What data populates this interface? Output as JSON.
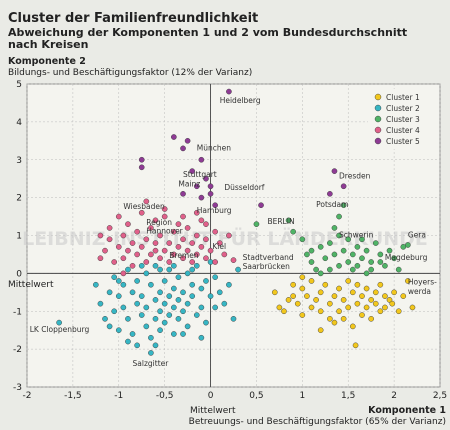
{
  "header": {
    "title": "Cluster der Familienfreundlichkeit",
    "subtitle_1": "Abweichung der Komponenten 1 und 2 vom Bundesdurchschnitt",
    "subtitle_2": "nach Kreisen"
  },
  "watermark": "LEIBNIZ-INSTITUT FÜR LÄNDERKUNDE",
  "chart_data": {
    "type": "scatter",
    "y_axis_title": "Komponente 2",
    "y_axis_desc": "Bildungs- und Beschäftigungsfaktor (12% der Varianz)",
    "x_axis_title": "Komponente 1",
    "x_axis_desc": "Betreuungs- und Beschäftigungsfaktor (65% der Varianz)",
    "x_mean_label": "Mittelwert",
    "y_mean_label": "Mittelwert",
    "xlim": [
      -2,
      2.5
    ],
    "ylim": [
      -3,
      5
    ],
    "x_ticks": [
      "-2",
      "-1,5",
      "-1",
      "-0,5",
      "0",
      "0,5",
      "1",
      "1,5",
      "2",
      "2,5"
    ],
    "y_ticks": [
      "-3",
      "-2",
      "-1",
      "0",
      "1",
      "2",
      "3",
      "4",
      "5"
    ],
    "legend_position": "top-right",
    "series": [
      {
        "name": "Cluster 1",
        "color": "#f2c71c",
        "points": [
          [
            0.7,
            -0.5
          ],
          [
            0.75,
            -0.9
          ],
          [
            0.8,
            -1.0
          ],
          [
            0.85,
            -0.7
          ],
          [
            0.9,
            -0.3
          ],
          [
            0.95,
            -0.8
          ],
          [
            1.0,
            -0.4
          ],
          [
            1.0,
            -1.1
          ],
          [
            1.05,
            -0.6
          ],
          [
            1.1,
            -0.9
          ],
          [
            1.1,
            -0.2
          ],
          [
            1.15,
            -0.7
          ],
          [
            1.2,
            -1.0
          ],
          [
            1.2,
            -0.5
          ],
          [
            1.25,
            -0.3
          ],
          [
            1.3,
            -0.8
          ],
          [
            1.3,
            -1.2
          ],
          [
            1.35,
            -0.6
          ],
          [
            1.4,
            -0.4
          ],
          [
            1.4,
            -1.0
          ],
          [
            1.45,
            -0.7
          ],
          [
            1.5,
            -0.2
          ],
          [
            1.5,
            -0.9
          ],
          [
            1.55,
            -0.5
          ],
          [
            1.55,
            -1.4
          ],
          [
            1.6,
            -0.8
          ],
          [
            1.6,
            -0.3
          ],
          [
            1.65,
            -1.1
          ],
          [
            1.65,
            -0.6
          ],
          [
            1.7,
            -0.9
          ],
          [
            1.7,
            -0.4
          ],
          [
            1.75,
            -0.7
          ],
          [
            1.75,
            -1.2
          ],
          [
            1.8,
            -0.5
          ],
          [
            1.8,
            -0.8
          ],
          [
            1.85,
            -1.0
          ],
          [
            1.85,
            -0.3
          ],
          [
            1.9,
            -0.6
          ],
          [
            1.9,
            -0.9
          ],
          [
            1.95,
            -0.7
          ],
          [
            1.98,
            -0.8
          ],
          [
            2.0,
            -0.5
          ],
          [
            2.05,
            -1.0
          ],
          [
            2.1,
            -0.6
          ],
          [
            2.15,
            -0.2
          ],
          [
            2.2,
            -0.9
          ],
          [
            1.58,
            -1.9
          ],
          [
            1.35,
            -1.3
          ],
          [
            1.2,
            -1.5
          ],
          [
            1.0,
            -0.1
          ],
          [
            0.9,
            -0.6
          ],
          [
            1.45,
            -1.2
          ]
        ]
      },
      {
        "name": "Cluster 2",
        "color": "#36b6c4",
        "points": [
          [
            -1.65,
            -1.3
          ],
          [
            -1.25,
            -0.3
          ],
          [
            -1.2,
            -0.8
          ],
          [
            -1.15,
            -1.2
          ],
          [
            -1.1,
            -0.5
          ],
          [
            -1.05,
            -0.1
          ],
          [
            -1.05,
            -1.0
          ],
          [
            -1.0,
            -0.6
          ],
          [
            -1.0,
            -1.5
          ],
          [
            -0.95,
            -0.3
          ],
          [
            -0.95,
            -0.9
          ],
          [
            -0.9,
            -1.2
          ],
          [
            -0.9,
            0.1
          ],
          [
            -0.85,
            -0.5
          ],
          [
            -0.85,
            -1.6
          ],
          [
            -0.8,
            -0.8
          ],
          [
            -0.8,
            -0.2
          ],
          [
            -0.75,
            -1.1
          ],
          [
            -0.75,
            -0.6
          ],
          [
            -0.7,
            0.0
          ],
          [
            -0.7,
            -1.4
          ],
          [
            -0.7,
            -0.9
          ],
          [
            -0.65,
            -0.3
          ],
          [
            -0.65,
            -1.7
          ],
          [
            -0.6,
            -0.7
          ],
          [
            -0.6,
            -1.2
          ],
          [
            -0.6,
            0.2
          ],
          [
            -0.55,
            -0.5
          ],
          [
            -0.55,
            -1.0
          ],
          [
            -0.55,
            -1.5
          ],
          [
            -0.5,
            -0.2
          ],
          [
            -0.5,
            -0.8
          ],
          [
            -0.5,
            -1.3
          ],
          [
            -0.45,
            0.1
          ],
          [
            -0.45,
            -0.6
          ],
          [
            -0.45,
            -1.1
          ],
          [
            -0.4,
            -0.4
          ],
          [
            -0.4,
            -0.9
          ],
          [
            -0.4,
            -1.6
          ],
          [
            -0.35,
            -0.1
          ],
          [
            -0.35,
            -0.7
          ],
          [
            -0.35,
            -1.2
          ],
          [
            -0.3,
            -0.5
          ],
          [
            -0.3,
            -1.0
          ],
          [
            -0.25,
            0.0
          ],
          [
            -0.25,
            -0.8
          ],
          [
            -0.25,
            -1.4
          ],
          [
            -0.2,
            -0.3
          ],
          [
            -0.2,
            -0.6
          ],
          [
            -0.15,
            -1.1
          ],
          [
            -0.15,
            0.2
          ],
          [
            -0.1,
            -0.4
          ],
          [
            -0.1,
            -0.9
          ],
          [
            -0.05,
            -0.2
          ],
          [
            -0.05,
            -1.3
          ],
          [
            0.0,
            -0.6
          ],
          [
            0.0,
            0.3
          ],
          [
            0.05,
            -0.9
          ],
          [
            0.05,
            -0.1
          ],
          [
            0.1,
            -0.5
          ],
          [
            0.15,
            -0.8
          ],
          [
            0.2,
            -0.3
          ],
          [
            0.25,
            -1.2
          ],
          [
            0.3,
            0.1
          ],
          [
            -0.65,
            -2.1
          ],
          [
            -1.0,
            -0.2
          ],
          [
            -0.8,
            -1.9
          ],
          [
            -0.3,
            -1.6
          ],
          [
            -0.1,
            -1.7
          ],
          [
            -0.55,
            0.1
          ],
          [
            -0.4,
            0.2
          ],
          [
            -0.2,
            0.1
          ],
          [
            -0.9,
            -1.8
          ],
          [
            -0.6,
            -1.9
          ],
          [
            -1.1,
            -1.4
          ],
          [
            -0.75,
            0.2
          ]
        ]
      },
      {
        "name": "Cluster 3",
        "color": "#4fb366",
        "points": [
          [
            0.5,
            1.3
          ],
          [
            0.85,
            1.4
          ],
          [
            0.9,
            1.1
          ],
          [
            1.0,
            0.9
          ],
          [
            1.05,
            0.5
          ],
          [
            1.1,
            0.3
          ],
          [
            1.15,
            0.1
          ],
          [
            1.2,
            0.7
          ],
          [
            1.25,
            0.4
          ],
          [
            1.3,
            0.8
          ],
          [
            1.3,
            0.1
          ],
          [
            1.35,
            0.5
          ],
          [
            1.4,
            1.0
          ],
          [
            1.4,
            0.2
          ],
          [
            1.45,
            0.6
          ],
          [
            1.5,
            0.3
          ],
          [
            1.5,
            0.9
          ],
          [
            1.55,
            0.1
          ],
          [
            1.55,
            0.5
          ],
          [
            1.6,
            0.7
          ],
          [
            1.6,
            0.2
          ],
          [
            1.65,
            0.4
          ],
          [
            1.7,
            0.6
          ],
          [
            1.7,
            0.0
          ],
          [
            1.75,
            0.3
          ],
          [
            1.8,
            0.8
          ],
          [
            1.85,
            0.5
          ],
          [
            1.9,
            0.2
          ],
          [
            1.95,
            0.6
          ],
          [
            2.0,
            0.4
          ],
          [
            2.05,
            0.1
          ],
          [
            2.1,
            0.7
          ],
          [
            2.15,
            0.75
          ],
          [
            1.45,
            1.8
          ],
          [
            1.4,
            1.5
          ],
          [
            1.35,
            1.2
          ],
          [
            1.1,
            0.6
          ],
          [
            1.2,
            0.0
          ],
          [
            1.65,
            0.9
          ],
          [
            1.75,
            0.1
          ],
          [
            1.85,
            0.3
          ]
        ]
      },
      {
        "name": "Cluster 4",
        "color": "#e0608a",
        "points": [
          [
            -1.15,
            0.6
          ],
          [
            -1.1,
            0.9
          ],
          [
            -1.1,
            1.2
          ],
          [
            -1.05,
            0.3
          ],
          [
            -1.0,
            0.7
          ],
          [
            -1.0,
            1.5
          ],
          [
            -0.95,
            1.0
          ],
          [
            -0.95,
            0.4
          ],
          [
            -0.9,
            0.6
          ],
          [
            -0.9,
            1.3
          ],
          [
            -0.85,
            0.8
          ],
          [
            -0.85,
            0.2
          ],
          [
            -0.8,
            1.1
          ],
          [
            -0.8,
            0.5
          ],
          [
            -0.75,
            1.6
          ],
          [
            -0.75,
            0.7
          ],
          [
            -0.7,
            0.9
          ],
          [
            -0.7,
            0.3
          ],
          [
            -0.65,
            1.2
          ],
          [
            -0.65,
            0.5
          ],
          [
            -0.6,
            0.8
          ],
          [
            -0.6,
            1.4
          ],
          [
            -0.55,
            0.4
          ],
          [
            -0.55,
            1.0
          ],
          [
            -0.5,
            0.6
          ],
          [
            -0.5,
            1.7
          ],
          [
            -0.45,
            0.8
          ],
          [
            -0.45,
            0.3
          ],
          [
            -0.4,
            1.1
          ],
          [
            -0.4,
            0.5
          ],
          [
            -0.35,
            0.7
          ],
          [
            -0.35,
            1.3
          ],
          [
            -0.3,
            0.4
          ],
          [
            -0.3,
            0.9
          ],
          [
            -0.25,
            1.2
          ],
          [
            -0.25,
            0.6
          ],
          [
            -0.2,
            0.8
          ],
          [
            -0.2,
            0.3
          ],
          [
            -0.15,
            1.0
          ],
          [
            -0.15,
            0.5
          ],
          [
            -0.1,
            0.7
          ],
          [
            -0.1,
            1.4
          ],
          [
            -0.05,
            0.4
          ],
          [
            -0.05,
            0.9
          ],
          [
            0.0,
            0.6
          ],
          [
            0.05,
            1.1
          ],
          [
            0.05,
            0.3
          ],
          [
            0.1,
            0.8
          ],
          [
            0.15,
            0.5
          ],
          [
            0.25,
            0.35
          ],
          [
            -0.5,
            1.5
          ],
          [
            -0.3,
            1.5
          ],
          [
            -0.15,
            1.6
          ],
          [
            -1.2,
            1.0
          ],
          [
            -1.2,
            0.4
          ],
          [
            -0.6,
            0.6
          ],
          [
            -0.95,
            0.0
          ],
          [
            -0.7,
            1.9
          ],
          [
            -0.05,
            1.3
          ],
          [
            0.2,
            1.0
          ]
        ]
      },
      {
        "name": "Cluster 5",
        "color": "#8e3b94",
        "points": [
          [
            0.2,
            4.8
          ],
          [
            -0.75,
            3.0
          ],
          [
            -0.75,
            2.8
          ],
          [
            -0.4,
            3.6
          ],
          [
            -0.3,
            3.3
          ],
          [
            -0.25,
            3.5
          ],
          [
            -0.2,
            2.7
          ],
          [
            -0.1,
            3.0
          ],
          [
            -0.05,
            2.5
          ],
          [
            0.0,
            2.3
          ],
          [
            0.0,
            2.1
          ],
          [
            -0.1,
            2.0
          ],
          [
            0.05,
            1.8
          ],
          [
            -0.3,
            2.1
          ],
          [
            0.55,
            1.8
          ],
          [
            1.3,
            2.1
          ],
          [
            1.35,
            2.7
          ],
          [
            1.45,
            2.3
          ],
          [
            -0.15,
            2.3
          ]
        ]
      }
    ],
    "labels": [
      {
        "text": "Heidelberg",
        "x": 0.1,
        "y": 4.5
      },
      {
        "text": "München",
        "x": -0.15,
        "y": 3.25
      },
      {
        "text": "Stuttgart",
        "x": -0.3,
        "y": 2.55
      },
      {
        "text": "Mainz",
        "x": -0.35,
        "y": 2.3
      },
      {
        "text": "Düsseldorf",
        "x": 0.15,
        "y": 2.2
      },
      {
        "text": "Wiesbaden",
        "x": -0.95,
        "y": 1.7
      },
      {
        "text": "Hamburg",
        "x": -0.15,
        "y": 1.6
      },
      {
        "text": "Region",
        "x": -0.7,
        "y": 1.28
      },
      {
        "text": "Hannover",
        "x": -0.7,
        "y": 1.05
      },
      {
        "text": "Kiel",
        "x": 0.02,
        "y": 0.65
      },
      {
        "text": "Bremen",
        "x": -0.45,
        "y": 0.4
      },
      {
        "text": "Stadtverband",
        "x": 0.35,
        "y": 0.35
      },
      {
        "text": "Saarbrücken",
        "x": 0.35,
        "y": 0.12
      },
      {
        "text": "BERLIN",
        "x": 0.62,
        "y": 1.3
      },
      {
        "text": "Dresden",
        "x": 1.4,
        "y": 2.5
      },
      {
        "text": "Potsdam",
        "x": 1.15,
        "y": 1.75
      },
      {
        "text": "Schwerin",
        "x": 1.4,
        "y": 0.95
      },
      {
        "text": "Gera",
        "x": 2.15,
        "y": 0.95
      },
      {
        "text": "Magdeburg",
        "x": 1.9,
        "y": 0.35
      },
      {
        "text": "Hoyers-",
        "x": 2.15,
        "y": -0.3
      },
      {
        "text": "werda",
        "x": 2.15,
        "y": -0.55
      },
      {
        "text": "LK Cloppenburg",
        "x": -1.97,
        "y": -1.55
      },
      {
        "text": "Salzgitter",
        "x": -0.85,
        "y": -2.45
      }
    ]
  }
}
